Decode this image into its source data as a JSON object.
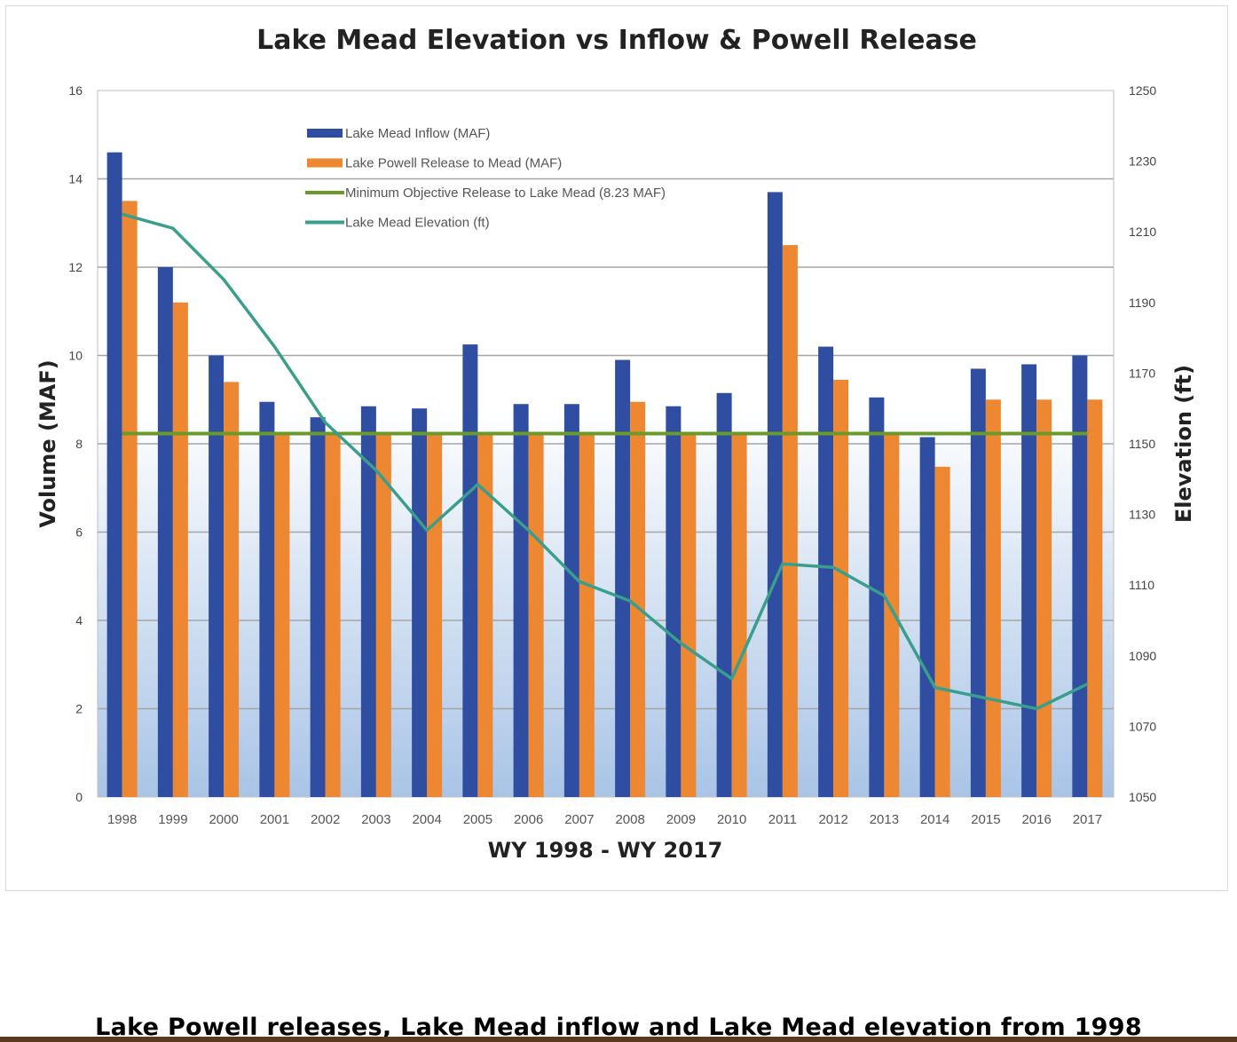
{
  "chart_data": {
    "type": "bar",
    "title": "Lake Mead Elevation vs Inflow & Powell Release",
    "xlabel": "WY 1998 - WY 2017",
    "ylabel": "Volume (MAF)",
    "y2label": "Elevation (ft)",
    "ylim": [
      0,
      16
    ],
    "y2lim": [
      1050,
      1250
    ],
    "yticks": [
      "0",
      "2",
      "4",
      "6",
      "8",
      "10",
      "12",
      "14",
      "16"
    ],
    "y2ticks": [
      "1050",
      "1070",
      "1090",
      "1110",
      "1130",
      "1150",
      "1170",
      "1190",
      "1210",
      "1230",
      "1250"
    ],
    "grid": true,
    "legend_placement": "top-left",
    "categories": [
      "1998",
      "1999",
      "2000",
      "2001",
      "2002",
      "2003",
      "2004",
      "2005",
      "2006",
      "2007",
      "2008",
      "2009",
      "2010",
      "2011",
      "2012",
      "2013",
      "2014",
      "2015",
      "2016",
      "2017"
    ],
    "series": [
      {
        "name": "Lake Mead Inflow (MAF)",
        "type": "bar",
        "axis": "left",
        "color": "#2f4ea1",
        "values": [
          14.6,
          12.0,
          10.0,
          8.95,
          8.6,
          8.85,
          8.8,
          10.25,
          8.9,
          8.9,
          9.9,
          8.85,
          9.15,
          13.7,
          10.2,
          9.05,
          8.15,
          9.7,
          9.8,
          10.0
        ]
      },
      {
        "name": "Lake Powell Release to Mead (MAF)",
        "type": "bar",
        "axis": "left",
        "color": "#ed8731",
        "values": [
          13.5,
          11.2,
          9.4,
          8.23,
          8.23,
          8.23,
          8.23,
          8.23,
          8.23,
          8.23,
          8.95,
          8.23,
          8.23,
          12.5,
          9.45,
          8.23,
          7.48,
          9.0,
          9.0,
          9.0
        ]
      },
      {
        "name": "Minimum Objective Release to Lake Mead (8.23 MAF)",
        "type": "line",
        "axis": "left",
        "color": "#6a9a2a",
        "values": [
          8.23,
          8.23,
          8.23,
          8.23,
          8.23,
          8.23,
          8.23,
          8.23,
          8.23,
          8.23,
          8.23,
          8.23,
          8.23,
          8.23,
          8.23,
          8.23,
          8.23,
          8.23,
          8.23,
          8.23
        ]
      },
      {
        "name": "Lake Mead Elevation (ft)",
        "type": "line",
        "axis": "right",
        "color": "#3a9e8c",
        "values": [
          1215,
          1211,
          1196.5,
          1177.5,
          1156,
          1142.5,
          1125.5,
          1138.5,
          1125.5,
          1111,
          1105.5,
          1093.5,
          1083.5,
          1116,
          1115,
          1107,
          1081,
          1078,
          1075,
          1082
        ]
      }
    ]
  },
  "caption": "Lake Powell releases, Lake Mead inflow and Lake Mead elevation from 1998"
}
